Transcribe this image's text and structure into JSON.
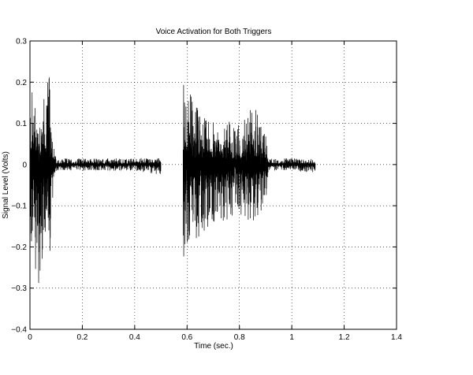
{
  "chart_data": {
    "type": "line",
    "title": "Voice Activation for Both Triggers",
    "xlabel": "Time (sec.)",
    "ylabel": "Signal Level (Volts)",
    "xlim": [
      0,
      1.4
    ],
    "ylim": [
      -0.4,
      0.3
    ],
    "xticks": [
      0,
      0.2,
      0.4,
      0.6,
      0.8,
      1,
      1.2,
      1.4
    ],
    "xtick_labels": [
      "0",
      "0.2",
      "0.4",
      "0.6",
      "0.8",
      "1",
      "1.2",
      "1.4"
    ],
    "yticks": [
      -0.4,
      -0.3,
      -0.2,
      -0.1,
      0,
      0.1,
      0.2,
      0.3
    ],
    "ytick_labels": [
      "−0.4",
      "−0.3",
      "−0.2",
      "−0.1",
      "0",
      "0.1",
      "0.2",
      "0.3"
    ],
    "grid": true,
    "series": [
      {
        "color": "#000000",
        "segments": [
          {
            "x_start": 0.0,
            "x_end": 0.5,
            "bursts": [
              {
                "t": 0.0,
                "amp_pos": 0.2,
                "amp_neg": -0.2
              },
              {
                "t": 0.02,
                "amp_pos": 0.16,
                "amp_neg": -0.25
              },
              {
                "t": 0.035,
                "amp_pos": 0.13,
                "amp_neg": -0.31
              },
              {
                "t": 0.055,
                "amp_pos": 0.19,
                "amp_neg": -0.22
              },
              {
                "t": 0.075,
                "amp_pos": 0.22,
                "amp_neg": -0.23
              },
              {
                "t": 0.09,
                "amp_pos": 0.05,
                "amp_neg": -0.08
              },
              {
                "t": 0.1,
                "amp_pos": 0.015,
                "amp_neg": -0.015
              },
              {
                "t": 0.4,
                "amp_pos": 0.015,
                "amp_neg": -0.015
              },
              {
                "t": 0.5,
                "amp_pos": 0.02,
                "amp_neg": -0.025
              }
            ]
          },
          {
            "x_start": 0.585,
            "x_end": 1.09,
            "bursts": [
              {
                "t": 0.585,
                "amp_pos": 0.24,
                "amp_neg": -0.25
              },
              {
                "t": 0.6,
                "amp_pos": 0.2,
                "amp_neg": -0.2
              },
              {
                "t": 0.65,
                "amp_pos": 0.12,
                "amp_neg": -0.18
              },
              {
                "t": 0.7,
                "amp_pos": 0.11,
                "amp_neg": -0.15
              },
              {
                "t": 0.75,
                "amp_pos": 0.11,
                "amp_neg": -0.14
              },
              {
                "t": 0.8,
                "amp_pos": 0.1,
                "amp_neg": -0.13
              },
              {
                "t": 0.85,
                "amp_pos": 0.15,
                "amp_neg": -0.15
              },
              {
                "t": 0.9,
                "amp_pos": 0.08,
                "amp_neg": -0.1
              },
              {
                "t": 0.91,
                "amp_pos": 0.015,
                "amp_neg": -0.015
              },
              {
                "t": 1.0,
                "amp_pos": 0.015,
                "amp_neg": -0.015
              },
              {
                "t": 1.09,
                "amp_pos": 0.015,
                "amp_neg": -0.02
              }
            ]
          }
        ]
      }
    ]
  }
}
